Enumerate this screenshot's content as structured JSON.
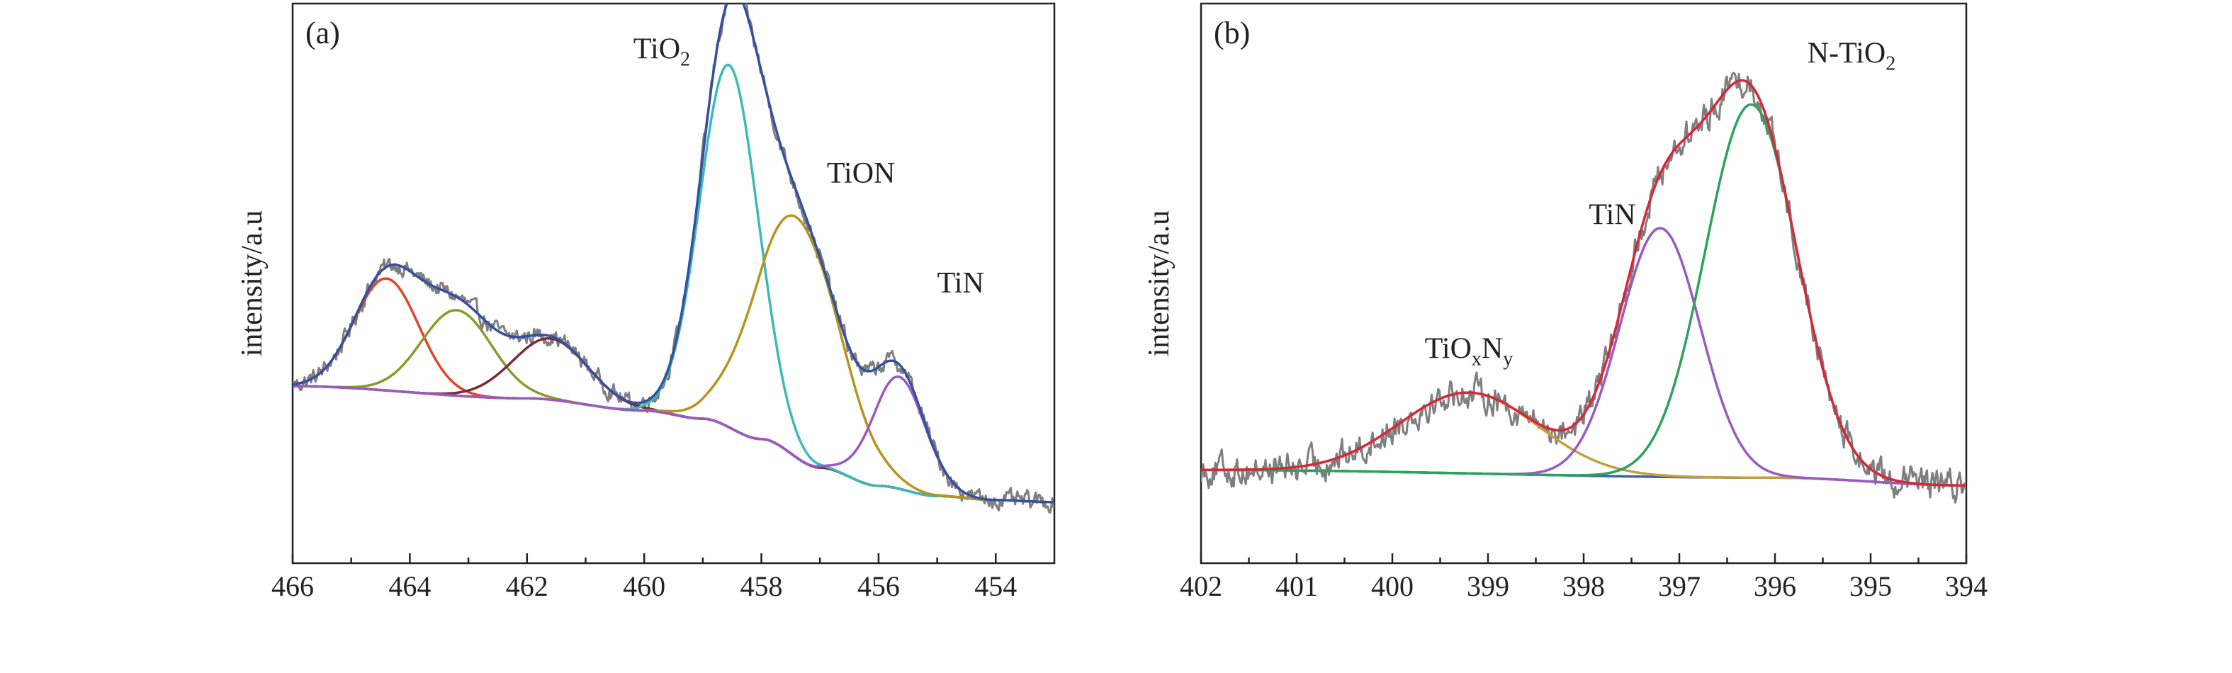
{
  "chart_data": [
    {
      "type": "line",
      "panel_label": "(a)",
      "ylabel": "intensity/a.u",
      "xlim": [
        466,
        453
      ],
      "x_reversed": true,
      "xticks": [
        466,
        464,
        462,
        460,
        458,
        456,
        454
      ],
      "ylim": [
        -0.25,
        2.5
      ],
      "annotations": [
        {
          "parts": [
            {
              "t": "TiO"
            },
            {
              "t": "2",
              "sub": true
            }
          ],
          "x": 459.7,
          "y": 2.23
        },
        {
          "parts": [
            {
              "t": "TiON"
            }
          ],
          "x": 456.3,
          "y": 1.62
        },
        {
          "parts": [
            {
              "t": "TiN"
            }
          ],
          "x": 454.6,
          "y": 1.08
        }
      ],
      "background": {
        "color": "#d9531e",
        "points": [
          [
            466,
            0.62
          ],
          [
            462,
            0.56
          ],
          [
            460,
            0.5
          ],
          [
            459,
            0.46
          ],
          [
            458,
            0.36
          ],
          [
            457,
            0.22
          ],
          [
            456,
            0.13
          ],
          [
            455,
            0.08
          ],
          [
            454,
            0.06
          ],
          [
            453,
            0.05
          ]
        ]
      },
      "components": [
        {
          "color": "#e0452a",
          "center": 464.4,
          "amplitude": 0.55,
          "sigma": 0.55
        },
        {
          "color": "#8a9a2a",
          "center": 463.2,
          "amplitude": 0.42,
          "sigma": 0.6
        },
        {
          "color": "#7a2c3a",
          "center": 461.6,
          "amplitude": 0.3,
          "sigma": 0.65
        },
        {
          "color": "#3bbab6",
          "center": 458.55,
          "amplitude": 1.78,
          "sigma": 0.5
        },
        {
          "color": "#b8941e",
          "center": 457.4,
          "amplitude": 1.18,
          "sigma": 0.72
        },
        {
          "color": "#9a59c4",
          "center": 455.65,
          "amplitude": 0.55,
          "sigma": 0.45
        }
      ],
      "envelope_color": "#3550a0",
      "raw_color": "#7f7f7f",
      "noise_amplitude": 0.035
    },
    {
      "type": "line",
      "panel_label": "(b)",
      "ylabel": "intensity/a.u",
      "xlim": [
        402,
        394
      ],
      "x_reversed": true,
      "xticks": [
        402,
        401,
        400,
        399,
        398,
        397,
        396,
        395,
        394
      ],
      "ylim": [
        -0.6,
        3.0
      ],
      "annotations": [
        {
          "parts": [
            {
              "t": "TiO"
            },
            {
              "t": "x",
              "sub": true
            },
            {
              "t": "N"
            },
            {
              "t": "y",
              "sub": true
            }
          ],
          "x": 399.2,
          "y": 0.72
        },
        {
          "parts": [
            {
              "t": "TiN"
            }
          ],
          "x": 397.7,
          "y": 1.58
        },
        {
          "parts": [
            {
              "t": "N-TiO"
            },
            {
              "t": "2",
              "sub": true
            }
          ],
          "x": 395.2,
          "y": 2.62
        }
      ],
      "background": {
        "color": "#3d5fb0",
        "points": [
          [
            402,
            0.0
          ],
          [
            396,
            -0.05
          ],
          [
            394,
            -0.1
          ]
        ]
      },
      "components": [
        {
          "color": "#c3a13a",
          "center": 399.2,
          "amplitude": 0.52,
          "sigma": 0.72
        },
        {
          "color": "#9a59c4",
          "center": 397.2,
          "amplitude": 1.6,
          "sigma": 0.42
        },
        {
          "color": "#2ca35a",
          "center": 396.25,
          "amplitude": 2.4,
          "sigma": 0.48
        }
      ],
      "envelope_color": "#d6283a",
      "raw_color": "#7f7f7f",
      "noise_amplitude": 0.08
    }
  ]
}
